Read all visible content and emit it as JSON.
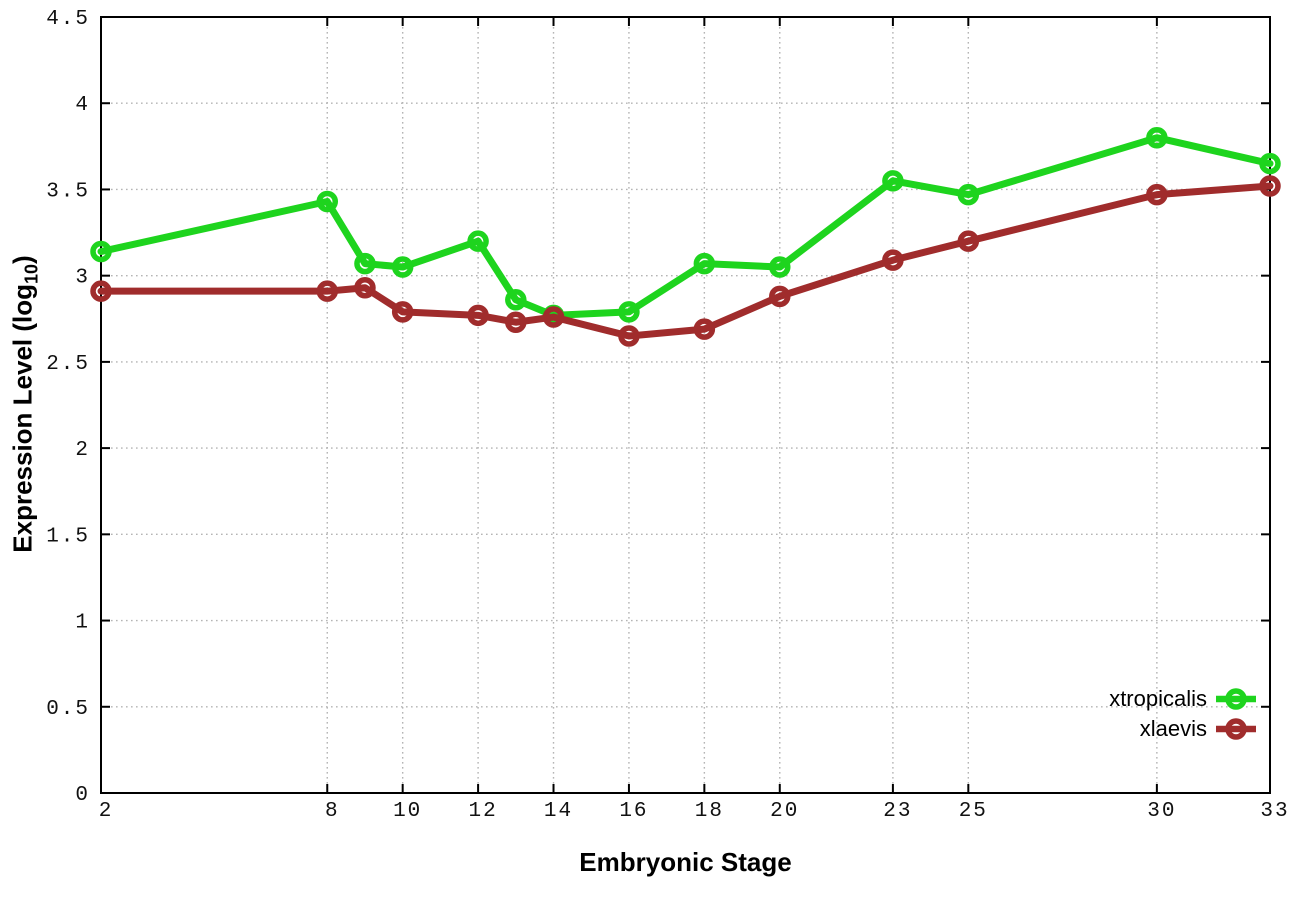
{
  "page": {
    "background": "#ffffff",
    "title": ""
  },
  "chart_data": {
    "type": "line",
    "title": "",
    "xlabel": "Embryonic Stage",
    "ylabel": "Expression Level (log10)",
    "ylabel_parts": {
      "main": "Expression Level (log",
      "sub": "10",
      "close": ")"
    },
    "xlim": [
      2,
      33
    ],
    "ylim": [
      0,
      4.5
    ],
    "xticks": [
      2,
      8,
      10,
      12,
      14,
      16,
      18,
      20,
      23,
      25,
      30,
      33
    ],
    "yticks": [
      0,
      0.5,
      1,
      1.5,
      2,
      2.5,
      3,
      3.5,
      4,
      4.5
    ],
    "grid": true,
    "legend_position": "inside-bottom-right",
    "x": [
      2,
      8,
      9,
      10,
      12,
      13,
      14,
      16,
      18,
      20,
      23,
      25,
      30,
      33
    ],
    "series": [
      {
        "name": "xtropicalis",
        "color": "#1ed41e",
        "values": [
          3.14,
          3.43,
          3.07,
          3.05,
          3.2,
          2.86,
          2.77,
          2.79,
          3.07,
          3.05,
          3.55,
          3.47,
          3.8,
          3.65
        ]
      },
      {
        "name": "xlaevis",
        "color": "#a02c2c",
        "values": [
          2.91,
          2.91,
          2.93,
          2.79,
          2.77,
          2.73,
          2.76,
          2.65,
          2.69,
          2.88,
          3.09,
          3.2,
          3.47,
          3.52
        ]
      }
    ],
    "colors": {
      "grid": "#b4b4b4",
      "axis": "#000000",
      "tick_text": "#111111"
    }
  }
}
